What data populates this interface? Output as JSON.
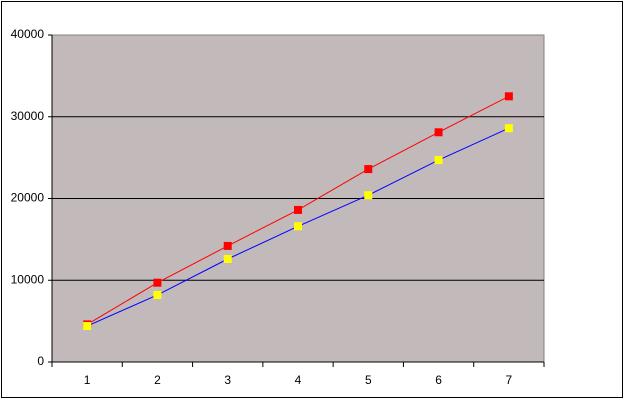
{
  "chart_data": {
    "type": "line",
    "categories": [
      1,
      2,
      3,
      4,
      5,
      6,
      7
    ],
    "series": [
      {
        "color": "#ff0000",
        "marker_color": "#ff0000",
        "values": [
          4600,
          9700,
          14200,
          18600,
          23600,
          28100,
          32500
        ]
      },
      {
        "color": "#0000ff",
        "marker_color": "#ffff00",
        "values": [
          4400,
          8200,
          12600,
          16600,
          20400,
          24700,
          28600
        ]
      }
    ],
    "ylim": [
      0,
      40000
    ],
    "yticks": [
      0,
      10000,
      20000,
      30000,
      40000
    ],
    "grid": true
  }
}
